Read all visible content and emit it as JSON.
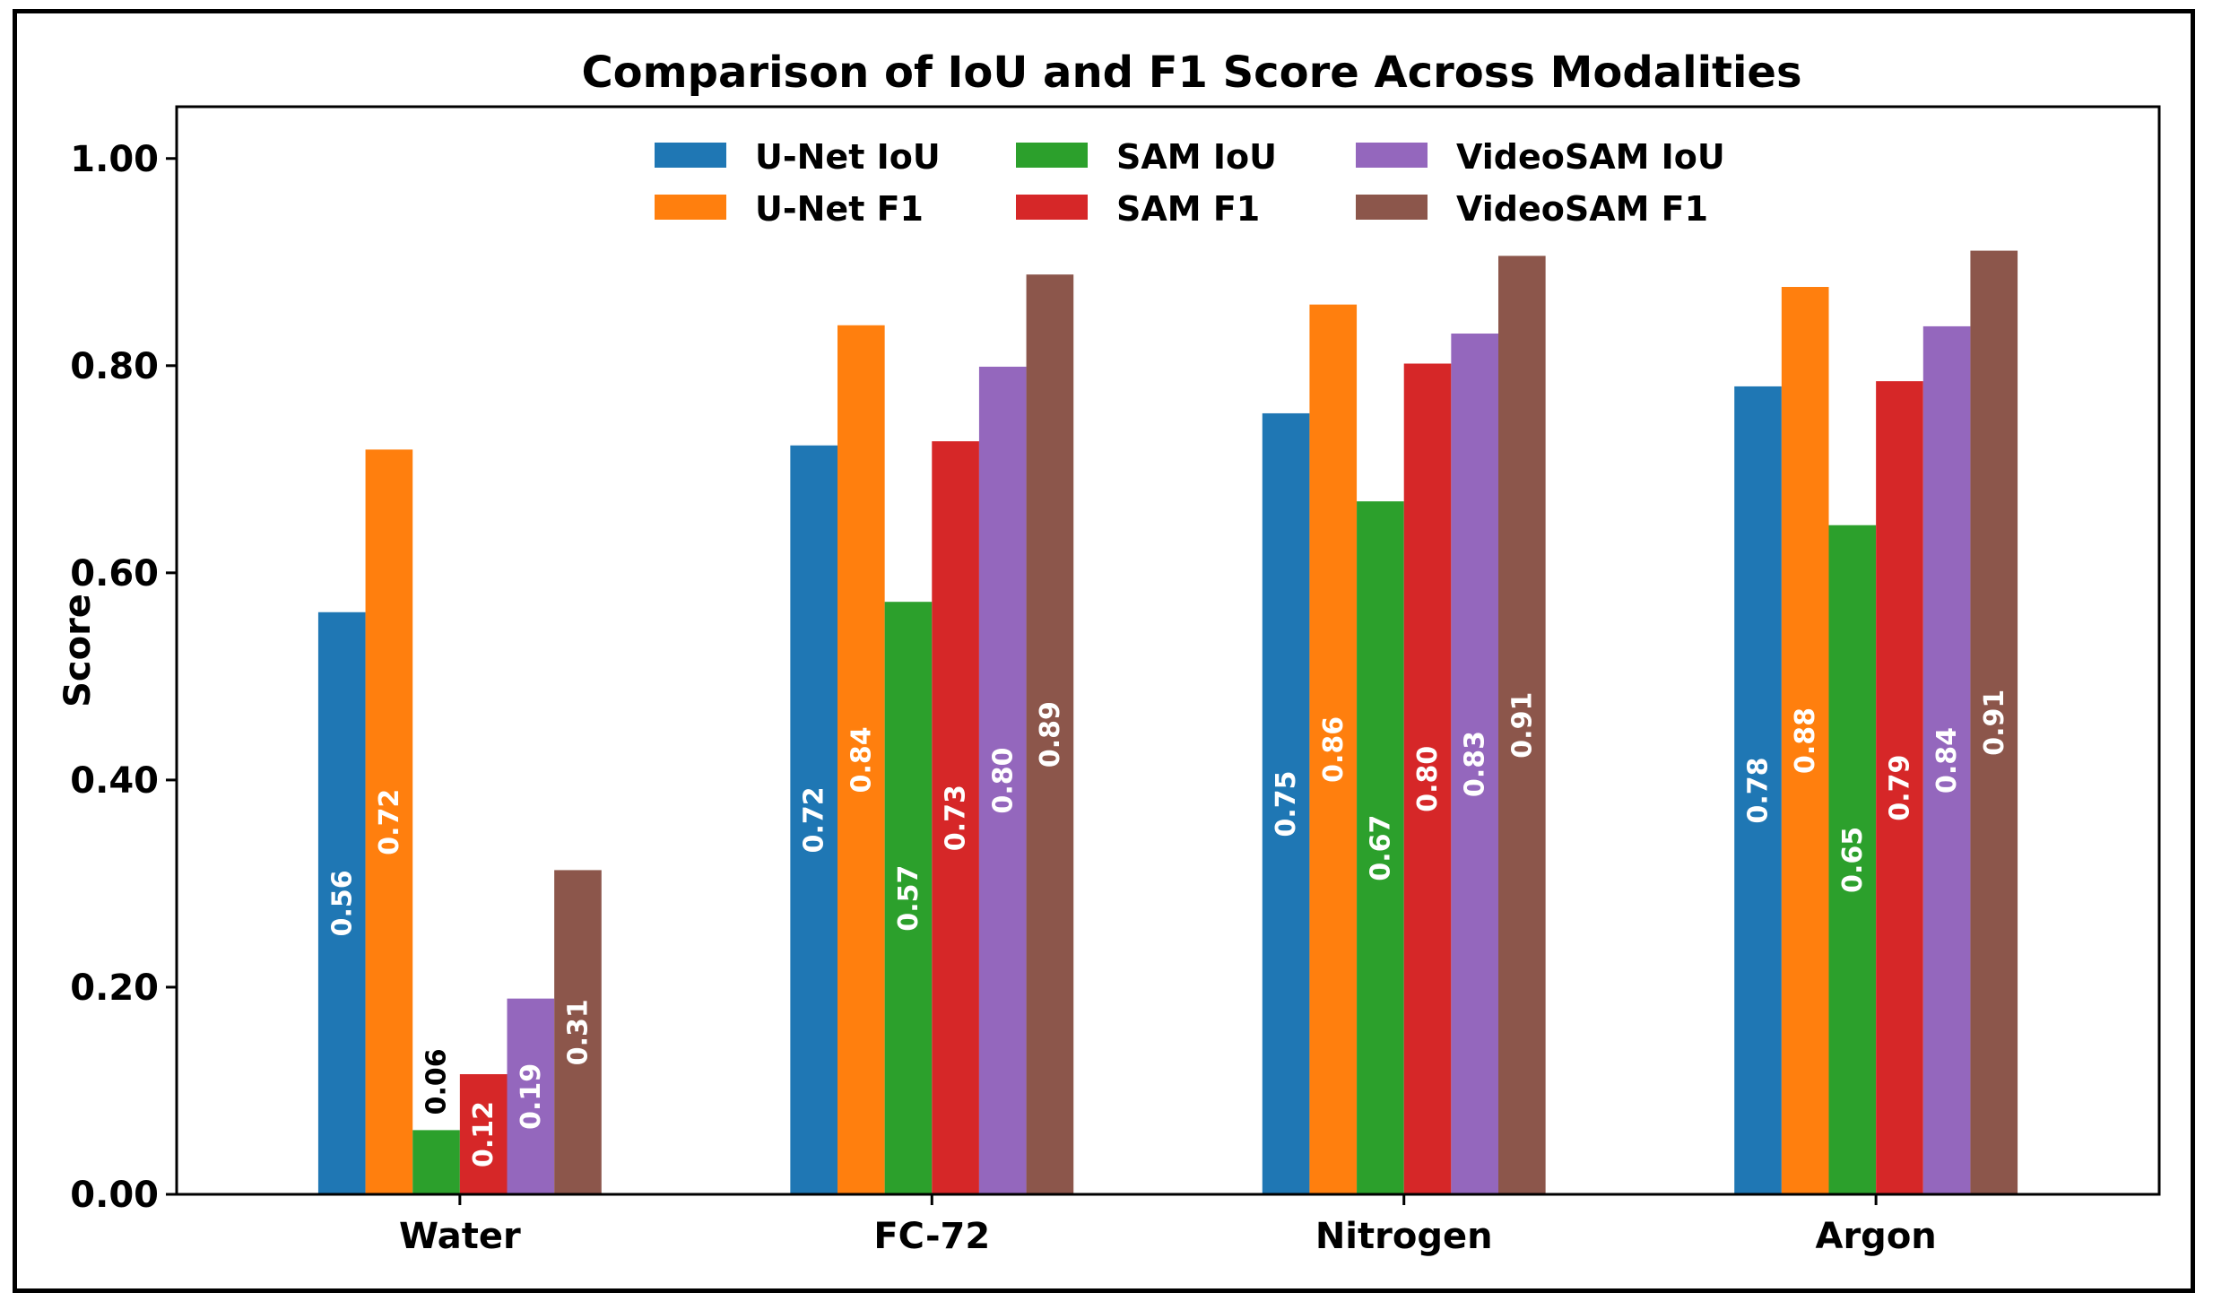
{
  "chart_data": {
    "type": "bar",
    "title": "Comparison of IoU and F1 Score Across Modalities",
    "xlabel": "",
    "ylabel": "Score",
    "ylim": [
      0,
      1.05
    ],
    "yticks": [
      "0.00",
      "0.20",
      "0.40",
      "0.60",
      "0.80",
      "1.00"
    ],
    "ytick_values": [
      0,
      0.2,
      0.4,
      0.6,
      0.8,
      1.0
    ],
    "categories": [
      "Water",
      "FC-72",
      "Nitrogen",
      "Argon"
    ],
    "grid": false,
    "legend_position": "top-center",
    "series": [
      {
        "name": "U-Net IoU",
        "color": "#1f77b4",
        "values": [
          0.562,
          0.723,
          0.754,
          0.78
        ],
        "labels": [
          "0.56",
          "0.72",
          "0.75",
          "0.78"
        ]
      },
      {
        "name": "U-Net F1",
        "color": "#ff7f0e",
        "values": [
          0.719,
          0.839,
          0.859,
          0.876
        ],
        "labels": [
          "0.72",
          "0.84",
          "0.86",
          "0.88"
        ]
      },
      {
        "name": "SAM IoU",
        "color": "#2ca02c",
        "values": [
          0.062,
          0.572,
          0.669,
          0.646
        ],
        "labels": [
          "0.06",
          "0.57",
          "0.67",
          "0.65"
        ]
      },
      {
        "name": "SAM F1",
        "color": "#d62728",
        "values": [
          0.116,
          0.727,
          0.802,
          0.785
        ],
        "labels": [
          "0.12",
          "0.73",
          "0.80",
          "0.79"
        ]
      },
      {
        "name": "VideoSAM IoU",
        "color": "#9467bd",
        "values": [
          0.189,
          0.799,
          0.831,
          0.838
        ],
        "labels": [
          "0.19",
          "0.80",
          "0.83",
          "0.84"
        ]
      },
      {
        "name": "VideoSAM F1",
        "color": "#8c564b",
        "values": [
          0.313,
          0.888,
          0.906,
          0.911
        ],
        "labels": [
          "0.31",
          "0.89",
          "0.91",
          "0.91"
        ]
      }
    ]
  }
}
